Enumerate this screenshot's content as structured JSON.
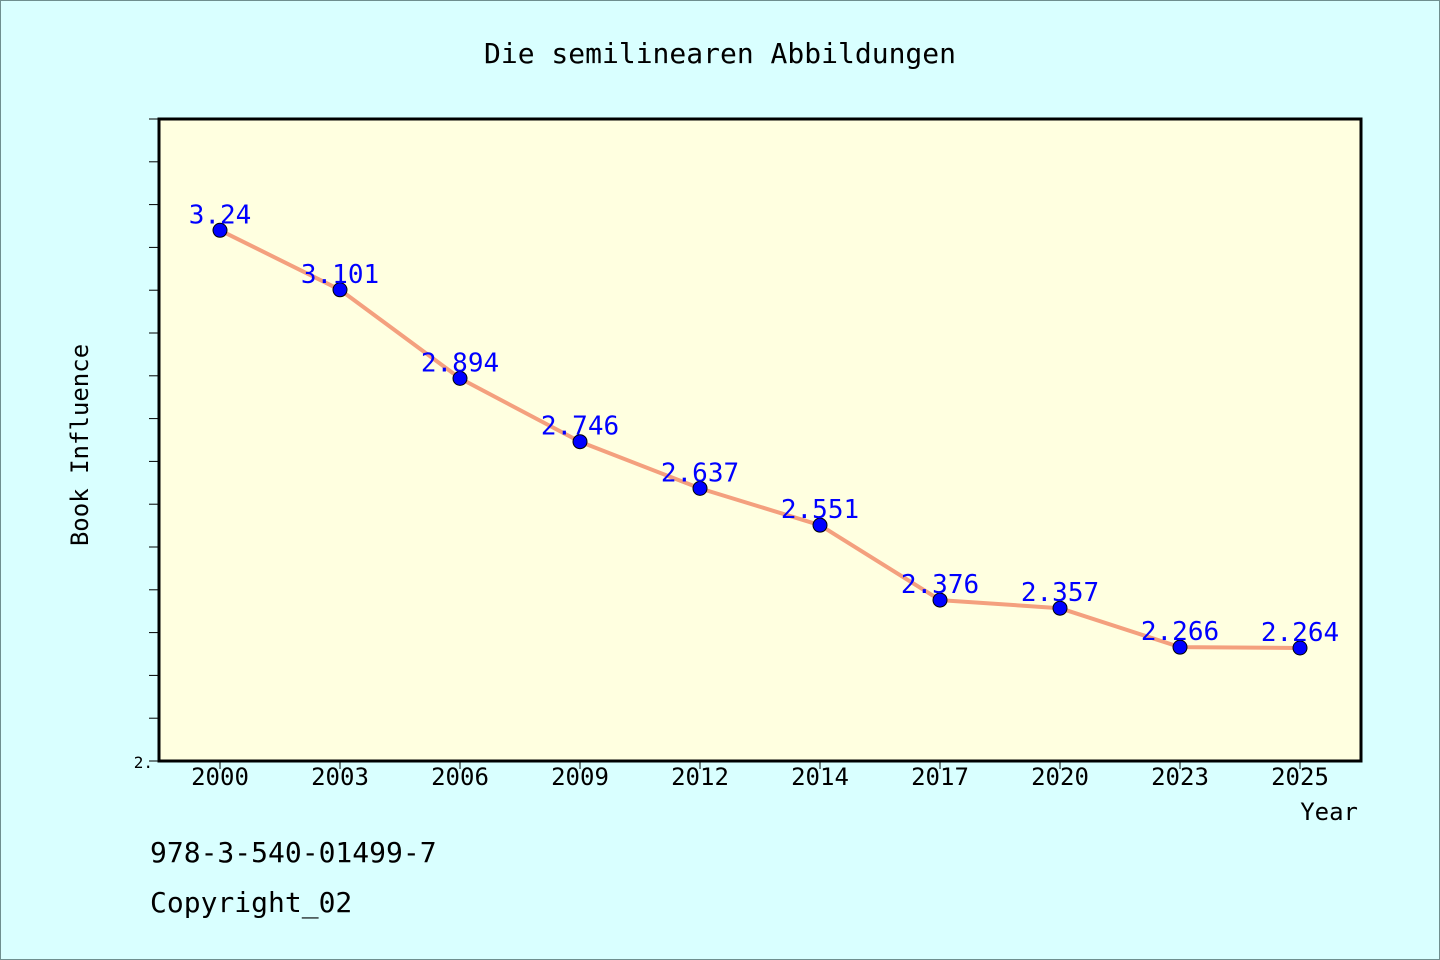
{
  "colors": {
    "background": "#d9ffff",
    "plot_background": "#ffffe0",
    "line": "#f4a07e",
    "marker": "#0000ff",
    "data_label": "#0000ff"
  },
  "chart_data": {
    "type": "line",
    "title": "Die semilinearen Abbildungen",
    "xlabel": "Year",
    "ylabel": "Book Influence",
    "categories": [
      "2000",
      "2003",
      "2006",
      "2009",
      "2012",
      "2014",
      "2017",
      "2020",
      "2023",
      "2025"
    ],
    "series": [
      {
        "values": [
          3.24,
          3.101,
          2.894,
          2.746,
          2.637,
          2.551,
          2.376,
          2.357,
          2.266,
          2.264
        ],
        "labels": [
          "3.24",
          "3.101",
          "2.894",
          "2.746",
          "2.637",
          "2.551",
          "2.376",
          "2.357",
          "2.266",
          "2.264"
        ]
      }
    ],
    "ylim": [
      2.0,
      3.5
    ],
    "y_tick_label": "2.",
    "grid": false,
    "legend": "none"
  },
  "footer": {
    "isbn": "978-3-540-01499-7",
    "copyright": "Copyright_02"
  }
}
